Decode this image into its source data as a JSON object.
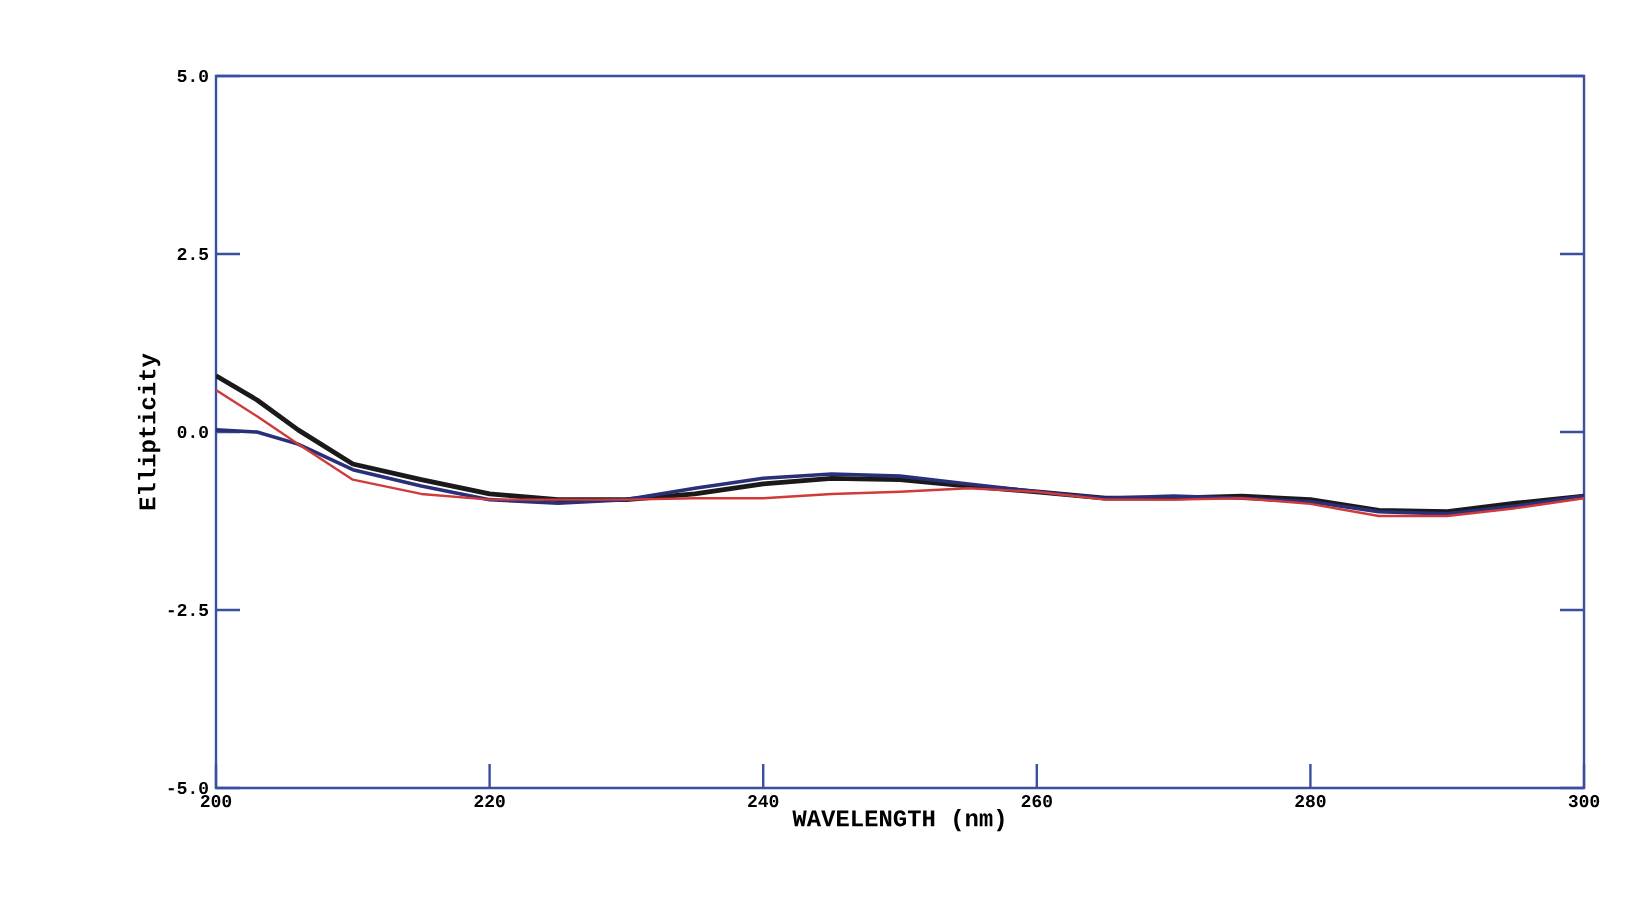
{
  "chart_data": {
    "type": "line",
    "xlabel": "WAVELENGTH (nm)",
    "ylabel": "Ellipticity",
    "x": [
      200,
      203,
      206,
      210,
      215,
      220,
      225,
      230,
      235,
      240,
      245,
      250,
      255,
      260,
      265,
      270,
      275,
      280,
      285,
      290,
      295,
      300
    ],
    "series": [
      {
        "color": "#1a1a1a",
        "values": [
          0.79,
          0.45,
          0.03,
          -0.45,
          -0.67,
          -0.87,
          -0.95,
          -0.95,
          -0.87,
          -0.73,
          -0.65,
          -0.67,
          -0.76,
          -0.84,
          -0.93,
          -0.93,
          -0.9,
          -0.95,
          -1.1,
          -1.12,
          -1.0,
          -0.9
        ]
      },
      {
        "color": "#2a2f7a",
        "values": [
          0.03,
          0.0,
          -0.17,
          -0.53,
          -0.76,
          -0.95,
          -1.0,
          -0.95,
          -0.79,
          -0.65,
          -0.59,
          -0.62,
          -0.73,
          -0.84,
          -0.93,
          -0.9,
          -0.93,
          -0.98,
          -1.12,
          -1.15,
          -1.04,
          -0.9
        ]
      },
      {
        "color": "#d03a3a",
        "values": [
          0.59,
          0.22,
          -0.17,
          -0.67,
          -0.87,
          -0.95,
          -0.95,
          -0.95,
          -0.93,
          -0.93,
          -0.87,
          -0.84,
          -0.79,
          -0.84,
          -0.95,
          -0.95,
          -0.93,
          -1.01,
          -1.18,
          -1.18,
          -1.07,
          -0.93
        ]
      }
    ],
    "xlim": [
      200,
      300
    ],
    "ylim": [
      -5,
      5
    ],
    "xticks": [
      {
        "value": 200,
        "label": "200"
      },
      {
        "value": 220,
        "label": "220"
      },
      {
        "value": 240,
        "label": "240"
      },
      {
        "value": 260,
        "label": "260"
      },
      {
        "value": 280,
        "label": "280"
      },
      {
        "value": 300,
        "label": "300"
      }
    ],
    "yticks": [
      {
        "value": -5,
        "label": "-5.0"
      },
      {
        "value": -2.5,
        "label": "-2.5"
      },
      {
        "value": 0,
        "label": "0.0"
      },
      {
        "value": 2.5,
        "label": "2.5"
      },
      {
        "value": 5,
        "label": "5.0"
      }
    ],
    "marker": "none",
    "line_style": "solid"
  }
}
